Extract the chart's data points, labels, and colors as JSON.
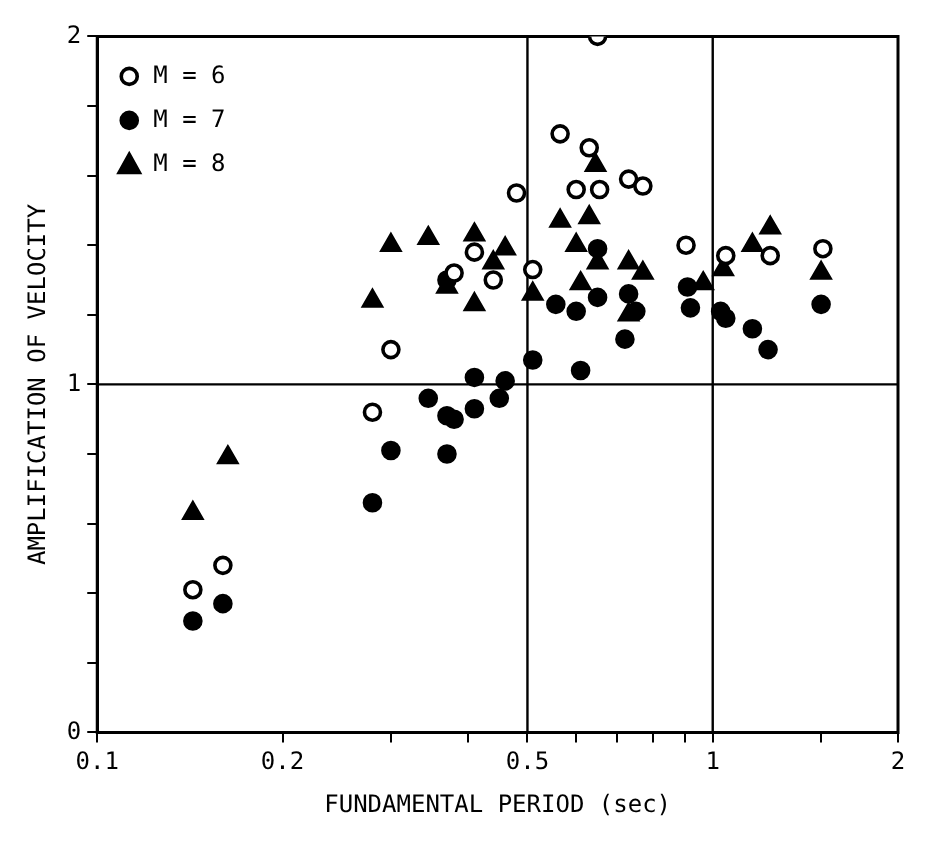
{
  "chart_data": {
    "type": "scatter",
    "xlabel": "FUNDAMENTAL PERIOD (sec)",
    "ylabel": "AMPLIFICATION OF VELOCITY",
    "log": "x",
    "xlim": [
      0.1,
      2
    ],
    "ylim": [
      0,
      2
    ],
    "xticks": [
      0.1,
      0.2,
      {
        "value": 0.3,
        "label": null
      },
      {
        "value": 0.4,
        "label": null
      },
      0.5,
      {
        "value": 0.6,
        "label": null
      },
      {
        "value": 0.7,
        "label": null
      },
      {
        "value": 0.8,
        "label": null
      },
      {
        "value": 0.9,
        "label": null
      },
      1,
      {
        "value": 1.5,
        "label": null
      },
      2
    ],
    "yticks": [
      0,
      {
        "value": 0.2,
        "label": null
      },
      {
        "value": 0.4,
        "label": null
      },
      {
        "value": 0.6,
        "label": null
      },
      {
        "value": 0.8,
        "label": null
      },
      1,
      {
        "value": 1.2,
        "label": null
      },
      {
        "value": 1.4,
        "label": null
      },
      {
        "value": 1.6,
        "label": null
      },
      {
        "value": 1.8,
        "label": null
      },
      2
    ],
    "grid": false,
    "legend": "top left",
    "ref_lines": [
      {
        "axis": "y",
        "value": 1
      },
      {
        "axis": "x",
        "value": 0.5
      },
      {
        "axis": "x",
        "value": 1
      }
    ],
    "series": [
      {
        "name": "M = 6",
        "color": "#ffffff",
        "marker": "circle",
        "x": [
          0.143,
          0.16,
          0.28,
          0.3,
          0.41,
          0.38,
          0.44,
          0.65,
          0.565,
          0.63,
          0.6,
          0.655,
          0.48,
          0.73,
          0.77,
          0.51,
          0.905,
          1.05,
          1.24,
          1.51
        ],
        "values": [
          0.41,
          0.48,
          0.92,
          1.1,
          1.38,
          1.32,
          1.3,
          2.0,
          1.72,
          1.68,
          1.56,
          1.56,
          1.55,
          1.59,
          1.57,
          1.33,
          1.4,
          1.37,
          1.37,
          1.39
        ]
      },
      {
        "name": "M = 7",
        "color": "#000000",
        "marker": "circle",
        "x": [
          0.143,
          0.16,
          0.28,
          0.3,
          0.37,
          0.345,
          0.37,
          0.38,
          0.41,
          0.41,
          0.45,
          0.51,
          0.61,
          0.46,
          0.72,
          1.16,
          1.23,
          1.5,
          0.556,
          0.6,
          0.65,
          0.73,
          0.75,
          0.65,
          0.92,
          0.91,
          1.03,
          1.05,
          0.37
        ],
        "values": [
          0.32,
          0.37,
          0.66,
          0.81,
          0.8,
          0.96,
          0.91,
          0.9,
          0.93,
          1.02,
          0.96,
          1.07,
          1.04,
          1.01,
          1.13,
          1.16,
          1.1,
          1.23,
          1.23,
          1.21,
          1.25,
          1.26,
          1.21,
          1.39,
          1.22,
          1.28,
          1.21,
          1.19,
          1.3
        ]
      },
      {
        "name": "M = 8",
        "color": "#000000",
        "marker": "triangle",
        "x": [
          0.163,
          0.143,
          0.3,
          0.28,
          0.345,
          0.41,
          0.41,
          0.37,
          0.44,
          0.46,
          0.51,
          0.565,
          0.63,
          0.645,
          0.6,
          0.65,
          0.61,
          0.73,
          0.77,
          0.73,
          1.04,
          0.965,
          1.16,
          1.24,
          1.5
        ],
        "values": [
          0.79,
          0.63,
          1.4,
          1.24,
          1.42,
          1.43,
          1.23,
          1.28,
          1.35,
          1.39,
          1.26,
          1.47,
          1.48,
          1.63,
          1.4,
          1.35,
          1.29,
          1.35,
          1.32,
          1.2,
          1.33,
          1.29,
          1.4,
          1.45,
          1.32
        ]
      }
    ]
  }
}
